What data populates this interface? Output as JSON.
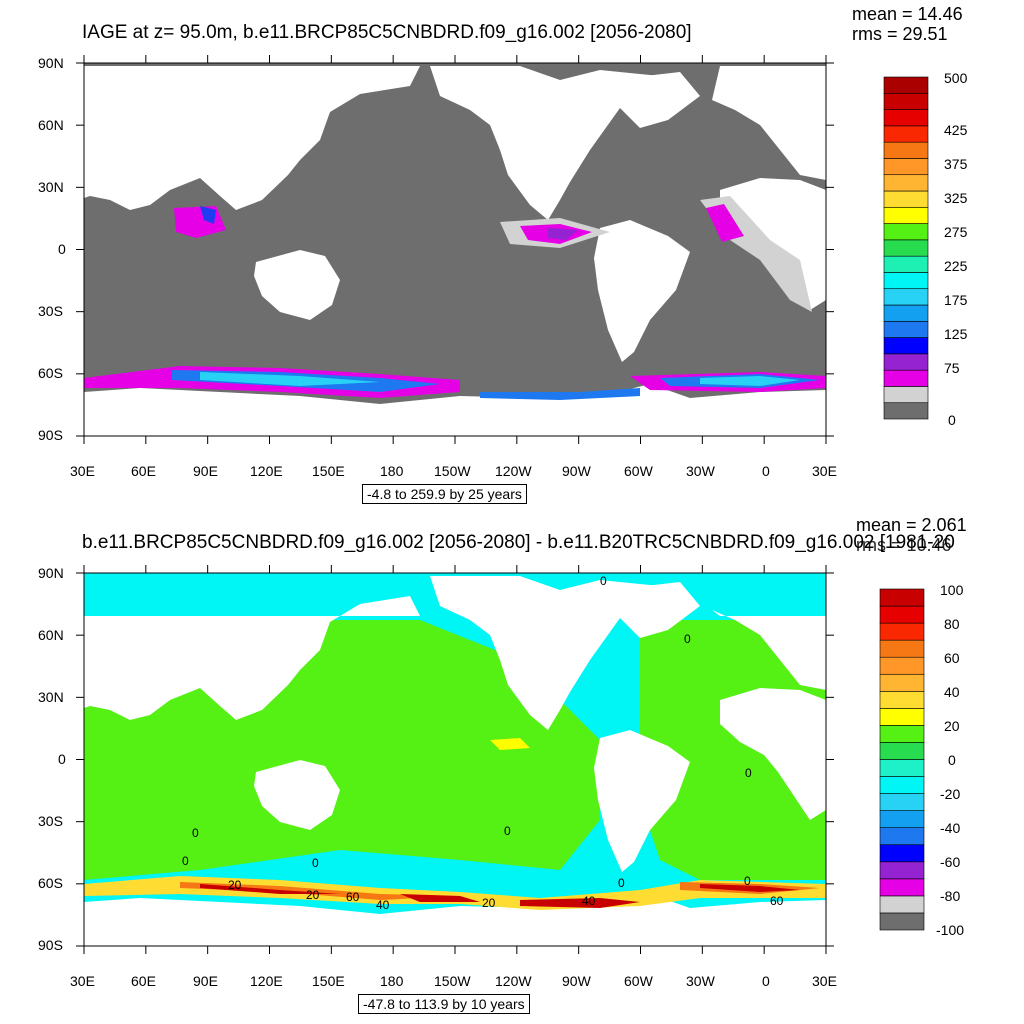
{
  "panels": [
    {
      "title": "IAGE at z=  95.0m, b.e11.BRCP85C5CNBDRD.f09_g16.002 [2056-2080]",
      "mean": "mean = 14.46",
      "rms": "rms = 29.51",
      "range": "-4.8 to 259.9 by 25 years",
      "colorbar": {
        "colors": [
          "#6e6e6e",
          "#d2d2d2",
          "#e600e6",
          "#9623d2",
          "#0000ff",
          "#1e78f0",
          "#14a0f0",
          "#28d2f5",
          "#00f5f5",
          "#1ef0b4",
          "#28dc50",
          "#55f014",
          "#ffff00",
          "#ffdc32",
          "#ffb432",
          "#ff9628",
          "#f57814",
          "#fa2800",
          "#e60000",
          "#c80000",
          "#aa0000"
        ],
        "labels": [
          "500",
          "425",
          "375",
          "325",
          "275",
          "225",
          "175",
          "125",
          "75",
          "0"
        ]
      }
    },
    {
      "title": "b.e11.BRCP85C5CNBDRD.f09_g16.002 [2056-2080] - b.e11.B20TRC5CNBDRD.f09_g16.002 [1981-20",
      "mean": "mean = 2.061",
      "rms": "rms = 10.46",
      "range": "-47.8 to 113.9 by 10 years",
      "contour_labels": [
        "0",
        "0",
        "0",
        "0",
        "0",
        "0",
        "0",
        "0",
        "0",
        "20",
        "20",
        "20",
        "40",
        "40",
        "60",
        "60"
      ],
      "colorbar": {
        "colors": [
          "#6e6e6e",
          "#d2d2d2",
          "#e600e6",
          "#9623d2",
          "#0000ff",
          "#1e78f0",
          "#14a0f0",
          "#28d2f5",
          "#00f5f5",
          "#1ef0c8",
          "#28dc50",
          "#55f014",
          "#ffff00",
          "#ffdc32",
          "#ffb432",
          "#ff9628",
          "#f57814",
          "#fa2800",
          "#e60000",
          "#c80000"
        ],
        "labels": [
          "100",
          "80",
          "60",
          "40",
          "20",
          "0",
          "-20",
          "-40",
          "-60",
          "-80",
          "-100"
        ]
      }
    }
  ],
  "axes": {
    "lat_labels": [
      "90N",
      "60N",
      "30N",
      "0",
      "30S",
      "60S",
      "90S"
    ],
    "lon_labels": [
      "30E",
      "60E",
      "90E",
      "120E",
      "150E",
      "180",
      "150W",
      "120W",
      "90W",
      "60W",
      "30W",
      "0",
      "30E"
    ]
  }
}
